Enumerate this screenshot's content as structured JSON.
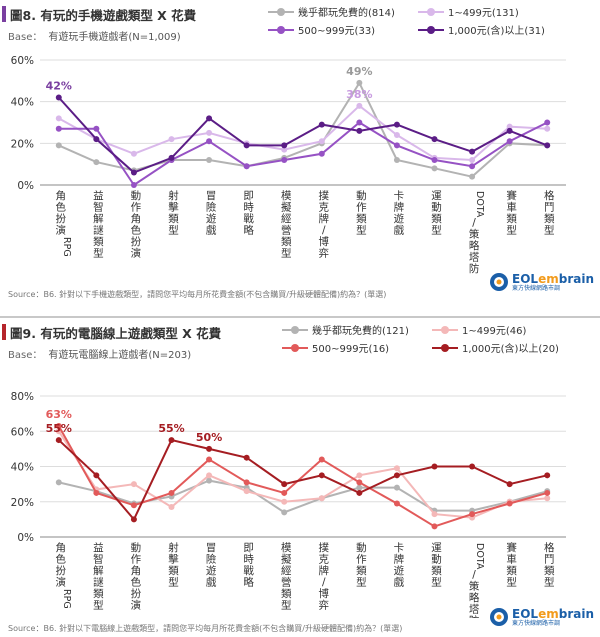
{
  "chart_data": [
    {
      "type": "line",
      "title_prefix": "圖8.",
      "title": "有玩的手機遊戲類型 X 花費",
      "base_key": "Base：",
      "base": "有遊玩手機遊戲者(N=1,009)",
      "source": "Source：B6. 針對以下手機遊戲類型，請問您平均每月所花費金額(不包含購買/升級硬體配備)約為？(單選)",
      "accent": "#7a3fa0",
      "ylim": [
        0,
        60
      ],
      "yticks": [
        "0%",
        "20%",
        "40%",
        "60%"
      ],
      "categories": [
        "角色扮演RPG",
        "益智解謎類型",
        "動作角色扮演",
        "射擊類型",
        "冒險遊戲",
        "即時戰略",
        "模擬經營類型",
        "撲克牌/博弈",
        "動作類型",
        "卡牌遊戲",
        "運動類型",
        "DOTA/策略塔防",
        "賽車類型",
        "格鬥類型"
      ],
      "series": [
        {
          "name": "幾乎都玩免費的(814)",
          "color": "#b3b3b3",
          "values": [
            19,
            11,
            7,
            12,
            12,
            9,
            13,
            20,
            49,
            12,
            8,
            4,
            20,
            19
          ]
        },
        {
          "name": "1~499元(131)",
          "color": "#d9b8ea",
          "values": [
            32,
            22,
            15,
            22,
            25,
            20,
            17,
            21,
            38,
            24,
            13,
            12,
            28,
            27
          ]
        },
        {
          "name": "500~999元(33)",
          "color": "#9652c4",
          "values": [
            27,
            27,
            0,
            12,
            21,
            9,
            12,
            15,
            30,
            19,
            12,
            9,
            21,
            30
          ]
        },
        {
          "name": "1,000元(含)以上(31)",
          "color": "#5b1d86",
          "values": [
            42,
            22,
            6,
            13,
            32,
            19,
            19,
            29,
            26,
            29,
            22,
            16,
            26,
            19
          ]
        }
      ],
      "annotations": [
        {
          "text": "42%",
          "series": 3,
          "index": 0,
          "color": "#7a3fa0"
        },
        {
          "text": "49%",
          "series": 0,
          "index": 8,
          "color": "#999999"
        },
        {
          "text": "38%",
          "series": 1,
          "index": 8,
          "color": "#c89ae0"
        }
      ]
    },
    {
      "type": "line",
      "title_prefix": "圖9.",
      "title": "有玩的電腦線上遊戲類型 X 花費",
      "base_key": "Base：",
      "base": "有遊玩電腦線上遊戲者(N=203)",
      "source": "Source：B6. 針對以下電腦線上遊戲類型，請問您平均每月所花費金額(不包含購買/升級硬體配備)約為？(單選)",
      "accent": "#b5252b",
      "ylim": [
        0,
        80
      ],
      "yticks": [
        "0%",
        "20%",
        "40%",
        "60%",
        "80%"
      ],
      "categories": [
        "角色扮演RPG",
        "益智解謎類型",
        "動作角色扮演",
        "射擊類型",
        "冒險遊戲",
        "即時戰略",
        "模擬經營類型",
        "撲克牌/博弈",
        "動作類型",
        "卡牌遊戲",
        "運動類型",
        "DOTA/策略塔防",
        "賽車類型",
        "格鬥類型"
      ],
      "series": [
        {
          "name": "幾乎都玩免費的(121)",
          "color": "#b3b3b3",
          "values": [
            31,
            26,
            19,
            23,
            32,
            28,
            14,
            22,
            28,
            28,
            15,
            15,
            20,
            26
          ]
        },
        {
          "name": "1~499元(46)",
          "color": "#f4b8b8",
          "values": [
            60,
            27,
            30,
            17,
            35,
            26,
            20,
            22,
            35,
            39,
            13,
            11,
            20,
            22
          ]
        },
        {
          "name": "500~999元(16)",
          "color": "#e25a5a",
          "values": [
            63,
            25,
            18,
            25,
            44,
            31,
            25,
            44,
            31,
            19,
            6,
            13,
            19,
            25
          ]
        },
        {
          "name": "1,000元(含)以上(20)",
          "color": "#a51d22",
          "values": [
            55,
            35,
            10,
            55,
            50,
            45,
            30,
            35,
            25,
            35,
            40,
            40,
            30,
            35
          ]
        }
      ],
      "annotations": [
        {
          "text": "63%",
          "series": 2,
          "index": 0,
          "color": "#e25a5a"
        },
        {
          "text": "55%",
          "series": 3,
          "index": 0,
          "color": "#a51d22"
        },
        {
          "text": "55%",
          "series": 3,
          "index": 3,
          "color": "#a51d22"
        },
        {
          "text": "50%",
          "series": 3,
          "index": 4,
          "color": "#a51d22"
        }
      ]
    }
  ],
  "logo": {
    "word_a": "EOL",
    "word_b": "em",
    "word_c": "brain",
    "sub": "東方快線網路市調"
  }
}
